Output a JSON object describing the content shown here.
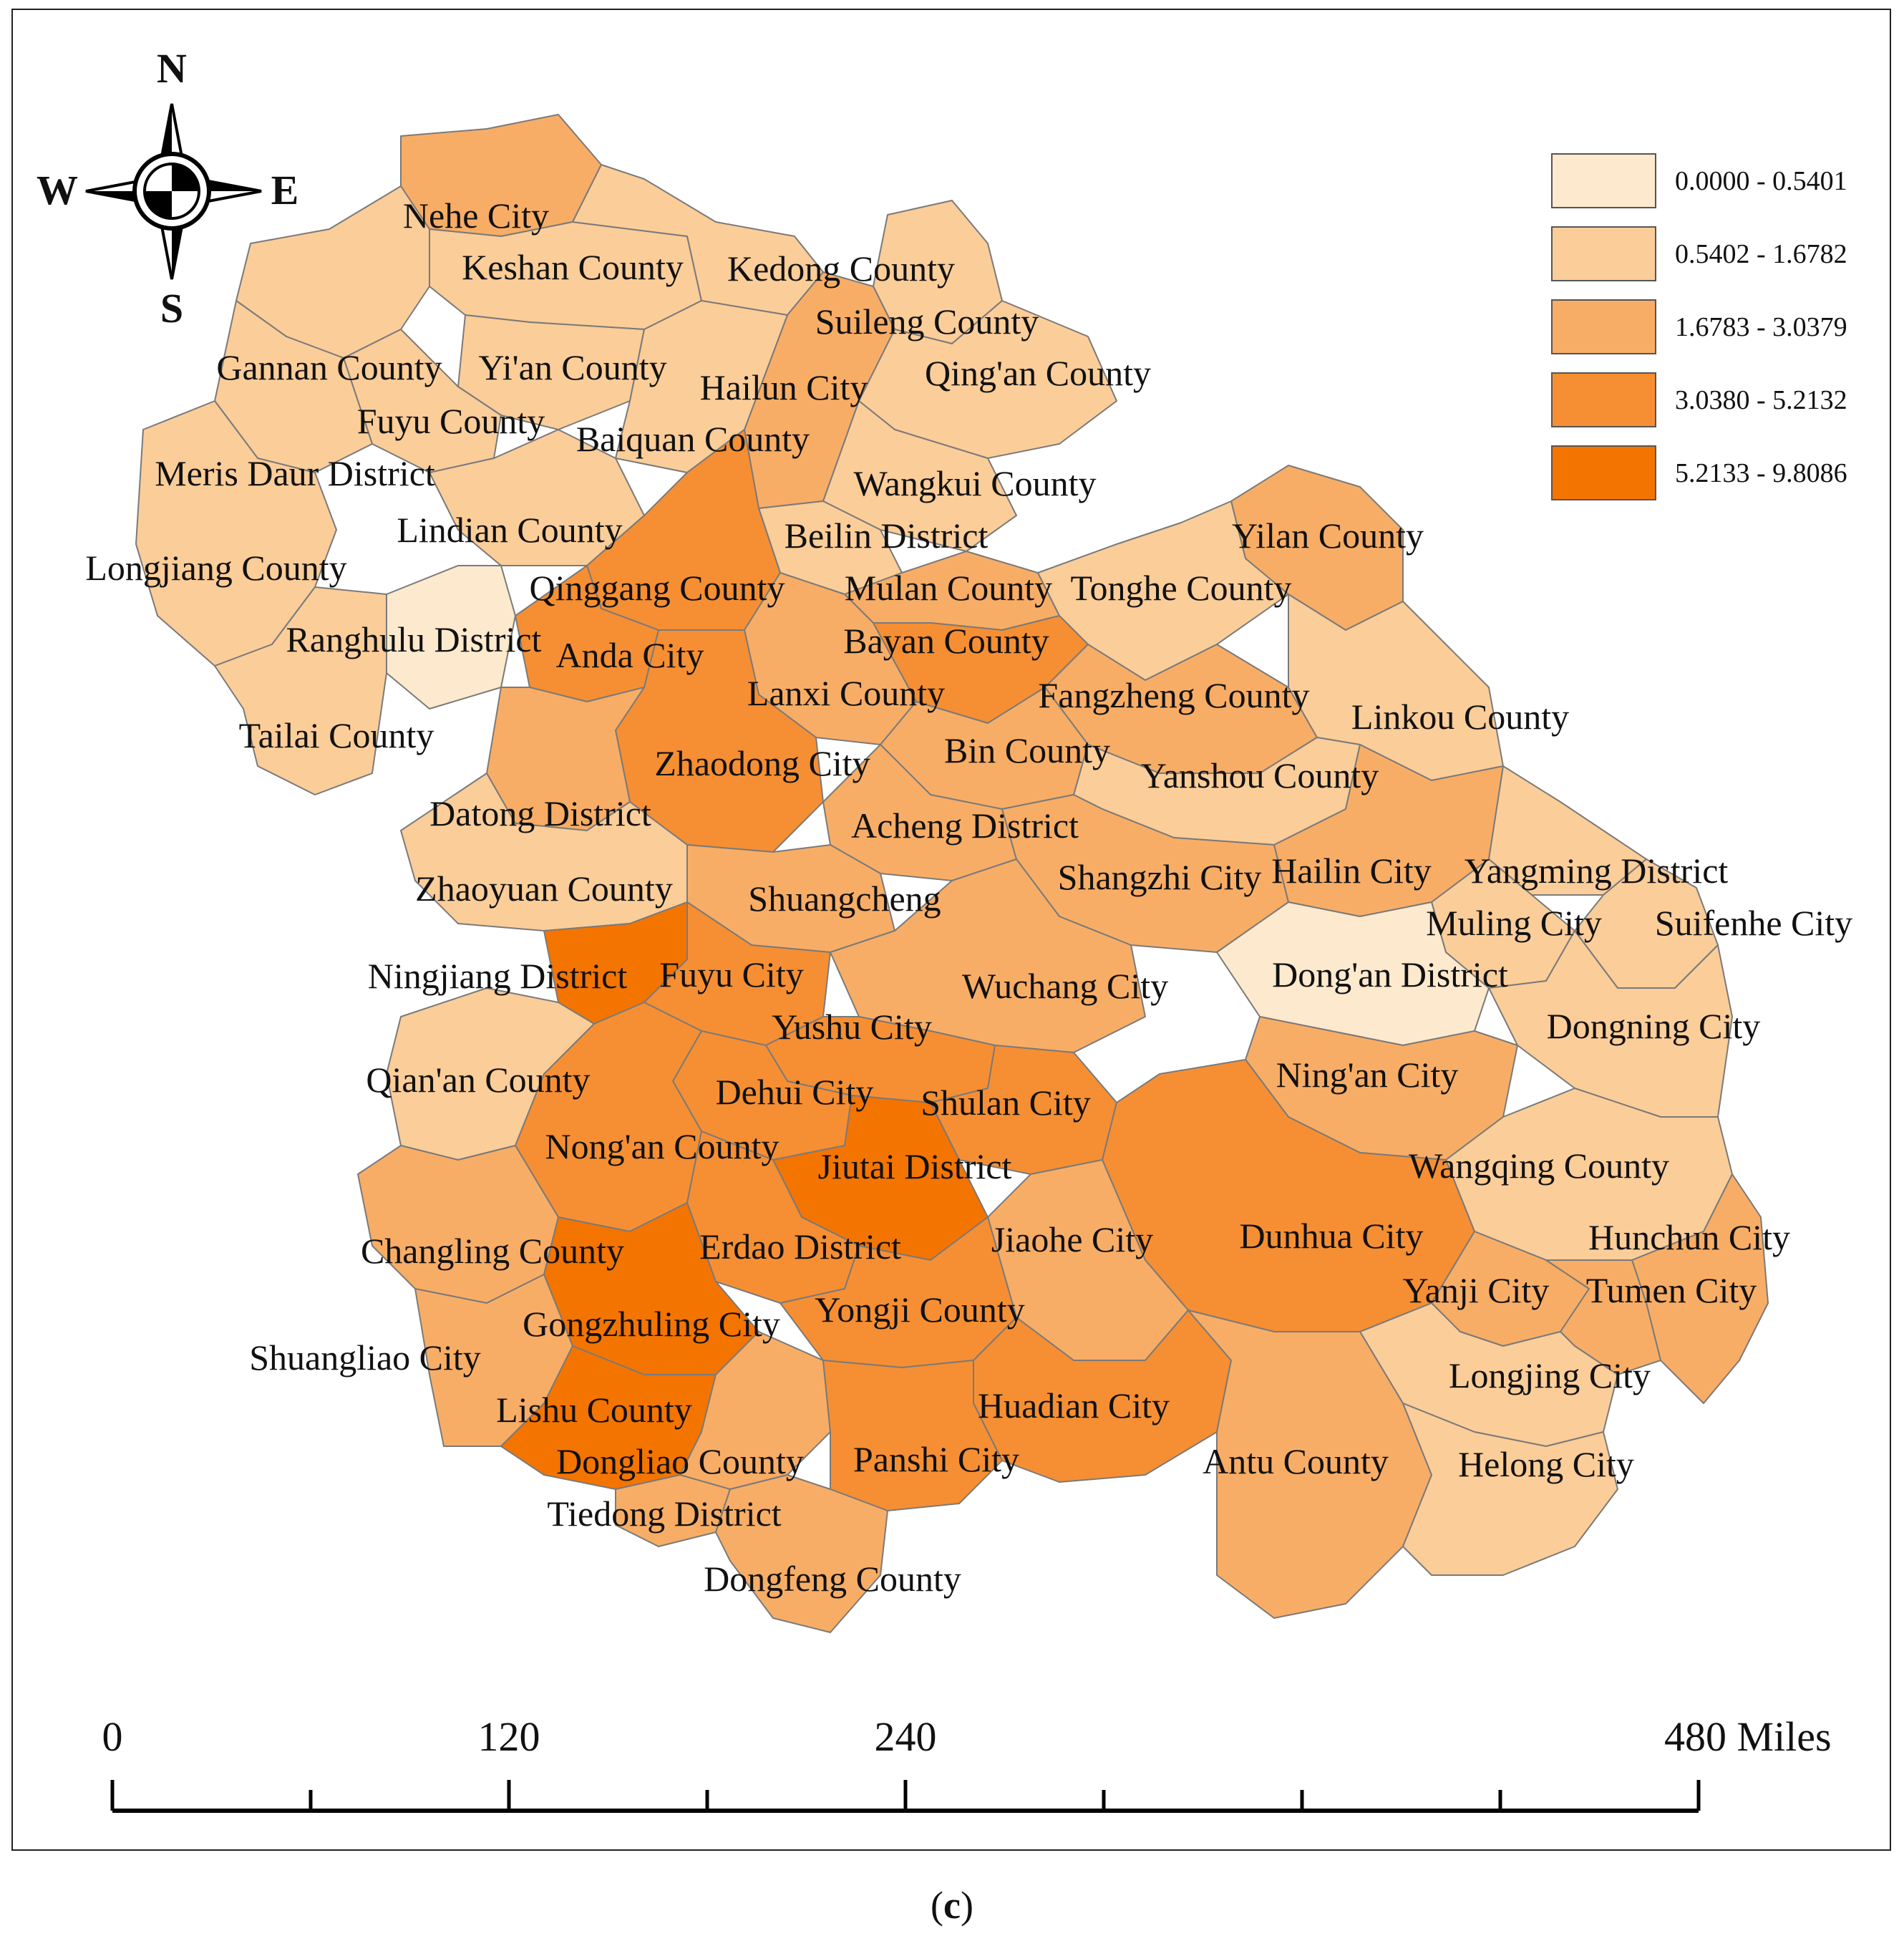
{
  "map": {
    "classes": [
      {
        "label": "0.0000 - 0.5401",
        "color": "#fde9cd"
      },
      {
        "label": "0.5402 - 1.6782",
        "color": "#fbcd99"
      },
      {
        "label": "1.6783 - 3.0379",
        "color": "#f8ad66"
      },
      {
        "label": "3.0380 - 5.2132",
        "color": "#f68f33"
      },
      {
        "label": "5.2133 - 9.8086",
        "color": "#f47400"
      }
    ],
    "compass": {
      "n": "N",
      "s": "S",
      "e": "E",
      "w": "W"
    },
    "scale": {
      "ticks": [
        "0",
        "120",
        "240",
        "480 Miles"
      ]
    },
    "caption": {
      "open": "(",
      "letter": "c",
      "close": ")"
    },
    "regions": [
      {
        "name": "Nehe City",
        "cls": 2
      },
      {
        "name": "Keshan County",
        "cls": 1
      },
      {
        "name": "Kedong County",
        "cls": 1
      },
      {
        "name": "Suileng County",
        "cls": 1
      },
      {
        "name": "Gannan County",
        "cls": 1
      },
      {
        "name": "Yi'an County",
        "cls": 1
      },
      {
        "name": "Hailun City",
        "cls": 2
      },
      {
        "name": "Qing'an County",
        "cls": 1
      },
      {
        "name": "Fuyu County",
        "cls": 1
      },
      {
        "name": "Baiquan County",
        "cls": 1
      },
      {
        "name": "Meris Daur District",
        "cls": 1
      },
      {
        "name": "Wangkui County",
        "cls": 1
      },
      {
        "name": "Lindian County",
        "cls": 1
      },
      {
        "name": "Beilin District",
        "cls": 1
      },
      {
        "name": "Yilan County",
        "cls": 2
      },
      {
        "name": "Longjiang County",
        "cls": 1
      },
      {
        "name": "Qinggang County",
        "cls": 3
      },
      {
        "name": "Mulan County",
        "cls": 2
      },
      {
        "name": "Tonghe County",
        "cls": 1
      },
      {
        "name": "Ranghulu District",
        "cls": 0
      },
      {
        "name": "Anda City",
        "cls": 3
      },
      {
        "name": "Bayan County",
        "cls": 3
      },
      {
        "name": "Lanxi County",
        "cls": 2
      },
      {
        "name": "Fangzheng County",
        "cls": 2
      },
      {
        "name": "Linkou County",
        "cls": 1
      },
      {
        "name": "Tailai County",
        "cls": 1
      },
      {
        "name": "Zhaodong City",
        "cls": 3
      },
      {
        "name": "Bin County",
        "cls": 2
      },
      {
        "name": "Yanshou County",
        "cls": 1
      },
      {
        "name": "Datong District",
        "cls": 2
      },
      {
        "name": "Acheng District",
        "cls": 2
      },
      {
        "name": "Shangzhi City",
        "cls": 2
      },
      {
        "name": "Hailin City",
        "cls": 2
      },
      {
        "name": "Yangming District",
        "cls": 1
      },
      {
        "name": "Zhaoyuan County",
        "cls": 1
      },
      {
        "name": "Shuangcheng",
        "cls": 2
      },
      {
        "name": "Muling City",
        "cls": 1
      },
      {
        "name": "Suifenhe City",
        "cls": 1
      },
      {
        "name": "Ningjiang District",
        "cls": 4
      },
      {
        "name": "Fuyu City",
        "cls": 3
      },
      {
        "name": "Wuchang City",
        "cls": 2
      },
      {
        "name": "Dong'an District",
        "cls": 0
      },
      {
        "name": "Yushu City",
        "cls": 3
      },
      {
        "name": "Dongning City",
        "cls": 1
      },
      {
        "name": "Qian'an County",
        "cls": 1
      },
      {
        "name": "Dehui City",
        "cls": 3
      },
      {
        "name": "Shulan City",
        "cls": 3
      },
      {
        "name": "Ning'an City",
        "cls": 2
      },
      {
        "name": "Nong'an County",
        "cls": 3
      },
      {
        "name": "Jiutai District",
        "cls": 4
      },
      {
        "name": "Wangqing County",
        "cls": 1
      },
      {
        "name": "Dunhua City",
        "cls": 3
      },
      {
        "name": "Changling County",
        "cls": 2
      },
      {
        "name": "Erdao District",
        "cls": 3
      },
      {
        "name": "Jiaohe City",
        "cls": 2
      },
      {
        "name": "Hunchun City",
        "cls": 2
      },
      {
        "name": "Yanji City",
        "cls": 2
      },
      {
        "name": "Tumen City",
        "cls": 2
      },
      {
        "name": "Gongzhuling City",
        "cls": 4
      },
      {
        "name": "Yongji County",
        "cls": 3
      },
      {
        "name": "Shuangliao City",
        "cls": 2
      },
      {
        "name": "Longjing City",
        "cls": 1
      },
      {
        "name": "Lishu County",
        "cls": 4
      },
      {
        "name": "Huadian City",
        "cls": 3
      },
      {
        "name": "Dongliao County",
        "cls": 2
      },
      {
        "name": "Panshi City",
        "cls": 3
      },
      {
        "name": "Antu County",
        "cls": 2
      },
      {
        "name": "Helong City",
        "cls": 1
      },
      {
        "name": "Tiedong District",
        "cls": 2
      },
      {
        "name": "Dongfeng County",
        "cls": 2
      }
    ]
  }
}
